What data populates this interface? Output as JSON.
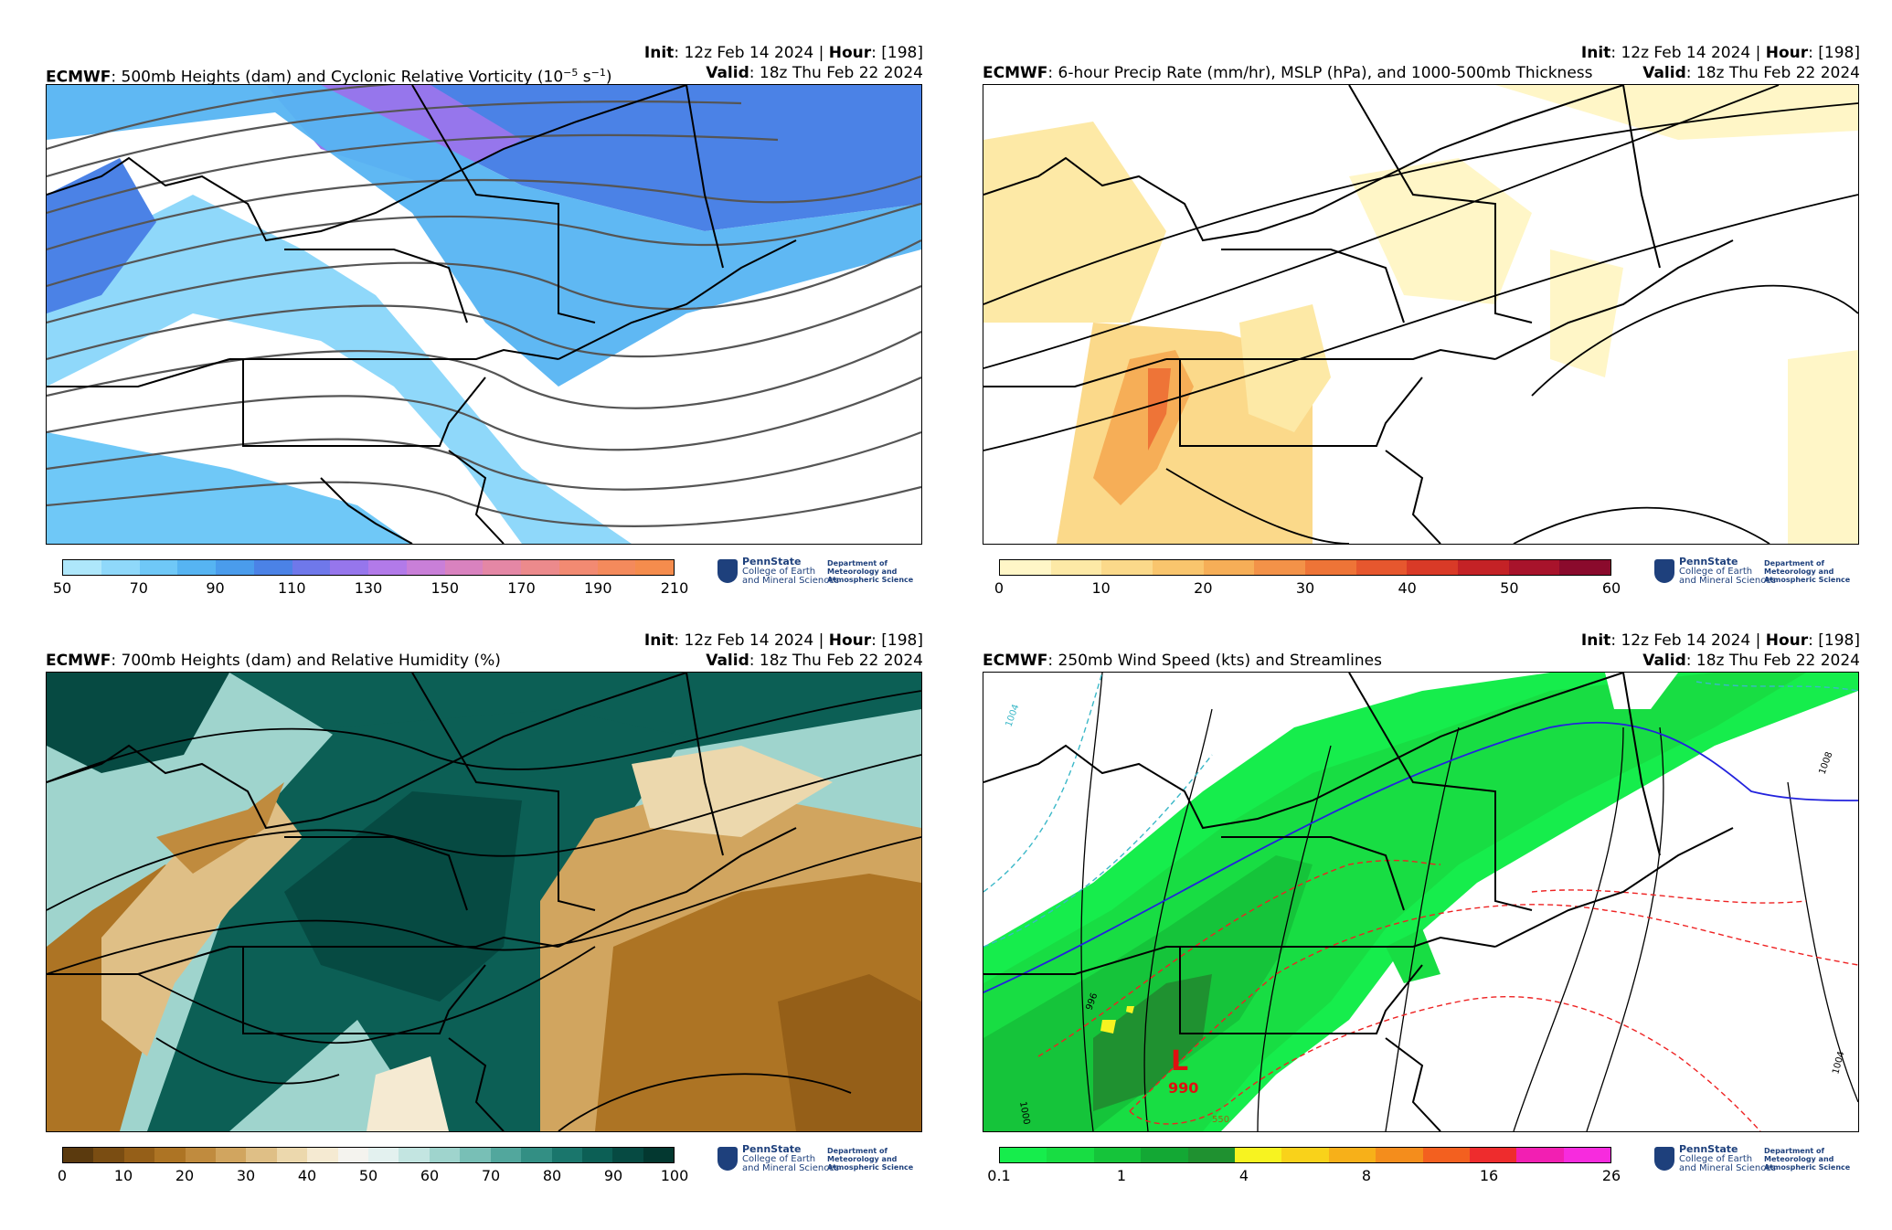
{
  "panels": [
    {
      "model": "ECMWF",
      "title": ": 500mb Heights (dam) and Cyclonic Relative Vorticity (10",
      "title_sup": "−5",
      "title_mid": " s",
      "title_sup2": "−1",
      "title_end": ")",
      "init_label": "Init",
      "init_value": ": 12z Feb 14 2024 | ",
      "hour_label": "Hour",
      "hour_value": ": [198]",
      "valid_label": "Valid",
      "valid_value": ": 18z Thu Feb 22 2024",
      "colorbar": {
        "ticks": [
          "50",
          "70",
          "90",
          "110",
          "130",
          "150",
          "170",
          "190",
          "210"
        ],
        "colors": [
          "#aee7fb",
          "#8fd8fa",
          "#6fc8f7",
          "#56b4f2",
          "#4a9cec",
          "#4b82e6",
          "#6f78ea",
          "#9676ec",
          "#b27ae9",
          "#c97fd8",
          "#d982bf",
          "#e487a5",
          "#ec8a8c",
          "#f28a72",
          "#f48a5c",
          "#f58c4d"
        ]
      },
      "logo": {
        "name": "PennState",
        "sub1": "College of Earth",
        "sub2": "and Mineral Sciences",
        "dept1": "Department of",
        "dept2": "Meteorology and",
        "dept3": "Atmospheric Science"
      }
    },
    {
      "model": "ECMWF",
      "title": ": 6-hour Precip Rate (mm/hr), MSLP (hPa), and 1000-500mb Thickness",
      "init_label": "Init",
      "init_value": ": 12z Feb 14 2024 | ",
      "hour_label": "Hour",
      "hour_value": ": [198]",
      "valid_label": "Valid",
      "valid_value": ": 18z Thu Feb 22 2024",
      "colorbar": {
        "ticks": [
          "0",
          "10",
          "20",
          "30",
          "40",
          "50",
          "60"
        ],
        "colors": [
          "#fff6c7",
          "#fde9a6",
          "#fbd98a",
          "#f9c56d",
          "#f6ae57",
          "#f39248",
          "#ee7437",
          "#e6572e",
          "#d93a27",
          "#c42226",
          "#a8132b",
          "#8a0a2c"
        ]
      },
      "logo": {
        "name": "PennState",
        "sub1": "College of Earth",
        "sub2": "and Mineral Sciences",
        "dept1": "Department of",
        "dept2": "Meteorology and",
        "dept3": "Atmospheric Science"
      }
    },
    {
      "model": "ECMWF",
      "title": ": 700mb Heights (dam) and Relative Humidity (%)",
      "init_label": "Init",
      "init_value": ": 12z Feb 14 2024 | ",
      "hour_label": "Hour",
      "hour_value": ": [198]",
      "valid_label": "Valid",
      "valid_value": ": 18z Thu Feb 22 2024",
      "colorbar": {
        "ticks": [
          "0",
          "10",
          "20",
          "30",
          "40",
          "50",
          "60",
          "70",
          "80",
          "90",
          "100"
        ],
        "colors": [
          "#5b3a0e",
          "#7a4d12",
          "#955f18",
          "#ad7424",
          "#c08b3e",
          "#d1a55f",
          "#dfbf86",
          "#ecd8ad",
          "#f5ead2",
          "#f4f3ee",
          "#e3f1ef",
          "#c3e5e1",
          "#9fd4cd",
          "#78bfb6",
          "#52a79d",
          "#338f84",
          "#1a766c",
          "#0c5f55",
          "#064a42",
          "#033830"
        ]
      },
      "logo": {
        "name": "PennState",
        "sub1": "College of Earth",
        "sub2": "and Mineral Sciences",
        "dept1": "Department of",
        "dept2": "Meteorology and",
        "dept3": "Atmospheric Science"
      }
    },
    {
      "model": "ECMWF",
      "title": ": 250mb Wind Speed (kts) and Streamlines",
      "init_label": "Init",
      "init_value": ": 12z Feb 14 2024 | ",
      "hour_label": "Hour",
      "hour_value": ": [198]",
      "valid_label": "Valid",
      "valid_value": ": 18z Thu Feb 22 2024",
      "colorbar": {
        "ticks": [
          "0.1",
          "1",
          "4",
          "8",
          "16",
          "26"
        ],
        "colors": [
          "#16ed4c",
          "#18dd43",
          "#15c43a",
          "#13a834",
          "#1f9130",
          "#f7f320",
          "#f9d21a",
          "#f7b019",
          "#f48d1c",
          "#f3601f",
          "#ee2c2d",
          "#f21fb2",
          "#f72bde"
        ]
      },
      "annotations": {
        "low_letter": "L",
        "low_value": "990",
        "contour_labels": [
          "996",
          "1000",
          "1004",
          "1008",
          "1004",
          "550"
        ]
      },
      "logo": {
        "name": "PennState",
        "sub1": "College of Earth",
        "sub2": "and Mineral Sciences",
        "dept1": "Department of",
        "dept2": "Meteorology and",
        "dept3": "Atmospheric Science"
      }
    }
  ]
}
